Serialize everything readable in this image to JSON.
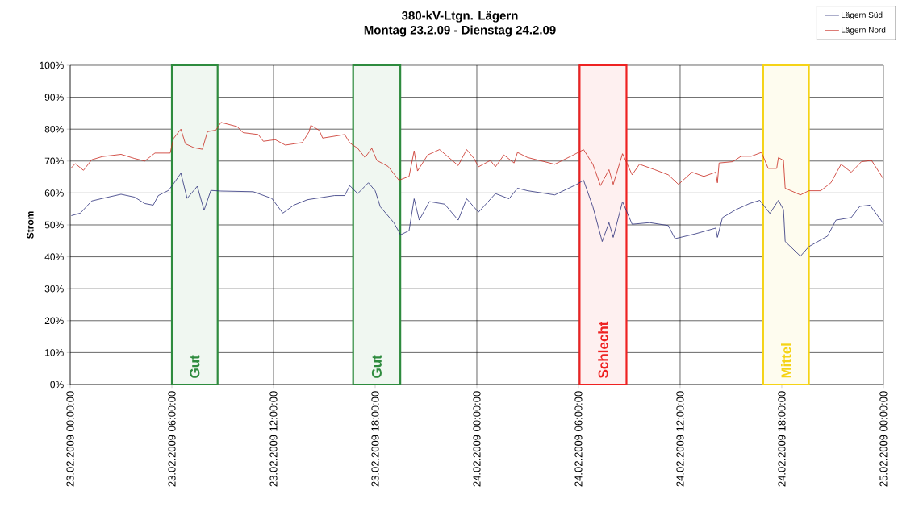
{
  "chart_data": {
    "type": "line",
    "title": "380-kV-Ltgn. Lägern",
    "subtitle": "Montag 23.2.09 - Dienstag 24.2.09",
    "ylabel": "Strom",
    "legend": "top right",
    "grid": true,
    "marker": "none",
    "line_style": "solid",
    "xlim": [
      "2009-02-23T00:00",
      "2009-02-25T00:00"
    ],
    "xticks": [
      {
        "value": "2009-02-23T00:00",
        "label": "23.02.2009 00:00:00"
      },
      {
        "value": "2009-02-23T06:00",
        "label": "23.02.2009 06:00:00"
      },
      {
        "value": "2009-02-23T12:00",
        "label": "23.02.2009 12:00:00"
      },
      {
        "value": "2009-02-23T18:00",
        "label": "23.02.2009 18:00:00"
      },
      {
        "value": "2009-02-24T00:00",
        "label": "24.02.2009 00:00:00"
      },
      {
        "value": "2009-02-24T06:00",
        "label": "24.02.2009 06:00:00"
      },
      {
        "value": "2009-02-24T12:00",
        "label": "24.02.2009 12:00:00"
      },
      {
        "value": "2009-02-24T18:00",
        "label": "24.02.2009 18:00:00"
      },
      {
        "value": "2009-02-25T00:00",
        "label": "25.02.2009 00:00:00"
      }
    ],
    "ylim": [
      0,
      100
    ],
    "yticks": [
      {
        "value": 0,
        "label": "0%"
      },
      {
        "value": 10,
        "label": "10%"
      },
      {
        "value": 20,
        "label": "20%"
      },
      {
        "value": 30,
        "label": "30%"
      },
      {
        "value": 40,
        "label": "40%"
      },
      {
        "value": 50,
        "label": "50%"
      },
      {
        "value": 60,
        "label": "60%"
      },
      {
        "value": 70,
        "label": "70%"
      },
      {
        "value": 80,
        "label": "80%"
      },
      {
        "value": 90,
        "label": "90%"
      },
      {
        "value": 100,
        "label": "100%"
      }
    ],
    "bands": [
      {
        "axis": "x",
        "from": "2009-02-23T06:00",
        "to": "2009-02-23T08:42",
        "label": "Gut",
        "color": "#2e8b3e"
      },
      {
        "axis": "x",
        "from": "2009-02-23T16:42",
        "to": "2009-02-23T19:29",
        "label": "Gut",
        "color": "#2e8b3e"
      },
      {
        "axis": "x",
        "from": "2009-02-24T06:04",
        "to": "2009-02-24T08:50",
        "label": "Schlecht",
        "color": "#ee2222"
      },
      {
        "axis": "x",
        "from": "2009-02-24T16:54",
        "to": "2009-02-24T19:36",
        "label": "Mittel",
        "color": "#f5d316"
      }
    ],
    "series": [
      {
        "name": "Lägern Süd",
        "color": "#2b2f7a",
        "x": [
          "2009-02-23T00:04",
          "2009-02-23T00:36",
          "2009-02-23T01:16",
          "2009-02-23T01:54",
          "2009-02-23T03:00",
          "2009-02-23T03:48",
          "2009-02-23T04:24",
          "2009-02-23T04:54",
          "2009-02-23T05:12",
          "2009-02-23T05:48",
          "2009-02-23T06:06",
          "2009-02-23T06:32",
          "2009-02-23T06:54",
          "2009-02-23T07:30",
          "2009-02-23T07:54",
          "2009-02-23T08:18",
          "2009-02-23T08:54",
          "2009-02-23T10:48",
          "2009-02-23T11:54",
          "2009-02-23T12:33",
          "2009-02-23T13:12",
          "2009-02-23T14:00",
          "2009-02-23T15:36",
          "2009-02-23T16:12",
          "2009-02-23T16:30",
          "2009-02-23T16:58",
          "2009-02-23T17:36",
          "2009-02-23T18:00",
          "2009-02-23T18:18",
          "2009-02-23T19:06",
          "2009-02-23T19:30",
          "2009-02-23T20:00",
          "2009-02-23T20:18",
          "2009-02-23T20:36",
          "2009-02-23T21:12",
          "2009-02-23T22:06",
          "2009-02-23T22:54",
          "2009-02-23T23:24",
          "2009-02-24T00:06",
          "2009-02-24T01:06",
          "2009-02-24T01:54",
          "2009-02-24T02:24",
          "2009-02-24T03:00",
          "2009-02-24T04:36",
          "2009-02-24T05:54",
          "2009-02-24T06:18",
          "2009-02-24T06:51",
          "2009-02-24T07:24",
          "2009-02-24T07:48",
          "2009-02-24T08:03",
          "2009-02-24T08:36",
          "2009-02-24T09:10",
          "2009-02-24T10:12",
          "2009-02-24T11:18",
          "2009-02-24T11:42",
          "2009-02-24T12:54",
          "2009-02-24T14:06",
          "2009-02-24T14:12",
          "2009-02-24T14:30",
          "2009-02-24T15:18",
          "2009-02-24T16:06",
          "2009-02-24T16:42",
          "2009-02-24T17:18",
          "2009-02-24T17:48",
          "2009-02-24T18:06",
          "2009-02-24T18:12",
          "2009-02-24T19:06",
          "2009-02-24T19:36",
          "2009-02-24T20:42",
          "2009-02-24T21:12",
          "2009-02-24T22:06",
          "2009-02-24T22:36",
          "2009-02-24T23:12",
          "2009-02-25T00:00"
        ],
        "values": [
          52.9,
          53.7,
          57.5,
          58.3,
          59.6,
          58.7,
          56.7,
          56.2,
          59.2,
          60.8,
          62.9,
          66.2,
          58.3,
          62.1,
          54.6,
          60.8,
          60.6,
          60.4,
          58.3,
          53.7,
          56.2,
          57.9,
          59.2,
          59.2,
          62.3,
          59.8,
          63.2,
          60.7,
          55.7,
          50.7,
          46.9,
          48.2,
          58.2,
          51.5,
          57.3,
          56.5,
          51.5,
          58.2,
          54,
          59.8,
          58.2,
          61.5,
          60.7,
          59.4,
          62.7,
          64,
          55.7,
          44.8,
          50.7,
          46.1,
          57.3,
          50.2,
          50.7,
          49.8,
          45.7,
          47.2,
          49,
          46.1,
          52.3,
          54.8,
          56.7,
          57.7,
          53.6,
          57.7,
          54.8,
          44.8,
          40.2,
          43.2,
          46.5,
          51.5,
          52.3,
          55.8,
          56.2,
          50.4
        ]
      },
      {
        "name": "Lägern Nord",
        "color": "#c8281e",
        "x": [
          "2009-02-23T00:04",
          "2009-02-23T00:18",
          "2009-02-23T00:47",
          "2009-02-23T01:16",
          "2009-02-23T01:54",
          "2009-02-23T03:00",
          "2009-02-23T03:48",
          "2009-02-23T04:24",
          "2009-02-23T05:00",
          "2009-02-23T05:54",
          "2009-02-23T06:06",
          "2009-02-23T06:32",
          "2009-02-23T06:48",
          "2009-02-23T07:18",
          "2009-02-23T07:48",
          "2009-02-23T08:06",
          "2009-02-23T08:36",
          "2009-02-23T08:54",
          "2009-02-23T09:51",
          "2009-02-23T10:12",
          "2009-02-23T11:06",
          "2009-02-23T11:24",
          "2009-02-23T12:06",
          "2009-02-23T12:42",
          "2009-02-23T13:42",
          "2009-02-23T14:06",
          "2009-02-23T14:12",
          "2009-02-23T14:42",
          "2009-02-23T14:54",
          "2009-02-23T16:12",
          "2009-02-23T16:30",
          "2009-02-23T16:58",
          "2009-02-23T17:24",
          "2009-02-23T17:48",
          "2009-02-23T18:06",
          "2009-02-23T18:46",
          "2009-02-23T19:24",
          "2009-02-23T20:00",
          "2009-02-23T20:18",
          "2009-02-23T20:30",
          "2009-02-23T21:06",
          "2009-02-23T21:48",
          "2009-02-23T22:54",
          "2009-02-23T23:24",
          "2009-02-23T23:51",
          "2009-02-24T00:06",
          "2009-02-24T00:48",
          "2009-02-24T01:06",
          "2009-02-24T01:36",
          "2009-02-24T02:12",
          "2009-02-24T02:24",
          "2009-02-24T03:00",
          "2009-02-24T04:36",
          "2009-02-24T05:42",
          "2009-02-24T06:18",
          "2009-02-24T06:51",
          "2009-02-24T07:18",
          "2009-02-24T07:48",
          "2009-02-24T08:03",
          "2009-02-24T08:36",
          "2009-02-24T09:10",
          "2009-02-24T09:36",
          "2009-02-24T10:30",
          "2009-02-24T11:18",
          "2009-02-24T11:54",
          "2009-02-24T12:42",
          "2009-02-24T13:24",
          "2009-02-24T14:06",
          "2009-02-24T14:12",
          "2009-02-24T14:18",
          "2009-02-24T15:06",
          "2009-02-24T15:36",
          "2009-02-24T16:12",
          "2009-02-24T16:48",
          "2009-02-24T17:12",
          "2009-02-24T17:42",
          "2009-02-24T17:48",
          "2009-02-24T18:06",
          "2009-02-24T18:12",
          "2009-02-24T19:06",
          "2009-02-24T19:36",
          "2009-02-24T20:18",
          "2009-02-24T20:54",
          "2009-02-24T21:30",
          "2009-02-24T22:06",
          "2009-02-24T22:42",
          "2009-02-24T23:18",
          "2009-02-25T00:00"
        ],
        "values": [
          67.9,
          69.2,
          67.1,
          70.4,
          71.4,
          72.1,
          70.8,
          70,
          72.5,
          72.5,
          77.1,
          80,
          75.4,
          74.2,
          73.7,
          79.2,
          79.7,
          82.1,
          80.8,
          78.9,
          78.3,
          76.2,
          76.7,
          75,
          75.8,
          79.2,
          81.2,
          79.6,
          77.2,
          78.3,
          75.7,
          74,
          71.1,
          74,
          70.2,
          68.3,
          64,
          65.2,
          73.2,
          66.9,
          71.9,
          73.6,
          68.6,
          73.6,
          70.7,
          68.2,
          70.2,
          68.2,
          71.9,
          69.4,
          72.7,
          71.1,
          69,
          71.9,
          73.6,
          69,
          62.3,
          67.3,
          62.7,
          72.3,
          65.7,
          69,
          67.3,
          65.7,
          62.7,
          66.5,
          65.2,
          66.5,
          63.2,
          69.4,
          69.8,
          71.5,
          71.5,
          72.7,
          67.7,
          67.7,
          71.1,
          70.2,
          61.5,
          59.4,
          60.7,
          60.7,
          63.2,
          69,
          66.5,
          69.8,
          70.2,
          64.4
        ]
      }
    ]
  }
}
